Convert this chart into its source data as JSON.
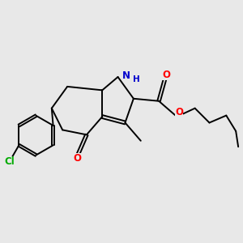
{
  "background_color": "#e8e8e8",
  "bond_color": "#000000",
  "figsize": [
    3.0,
    3.0
  ],
  "dpi": 100,
  "lw": 1.4,
  "colors": {
    "N": "#0000cc",
    "O": "#ff0000",
    "Cl": "#00aa00",
    "C": "#000000"
  },
  "xlim": [
    0,
    10
  ],
  "ylim": [
    0,
    10
  ]
}
